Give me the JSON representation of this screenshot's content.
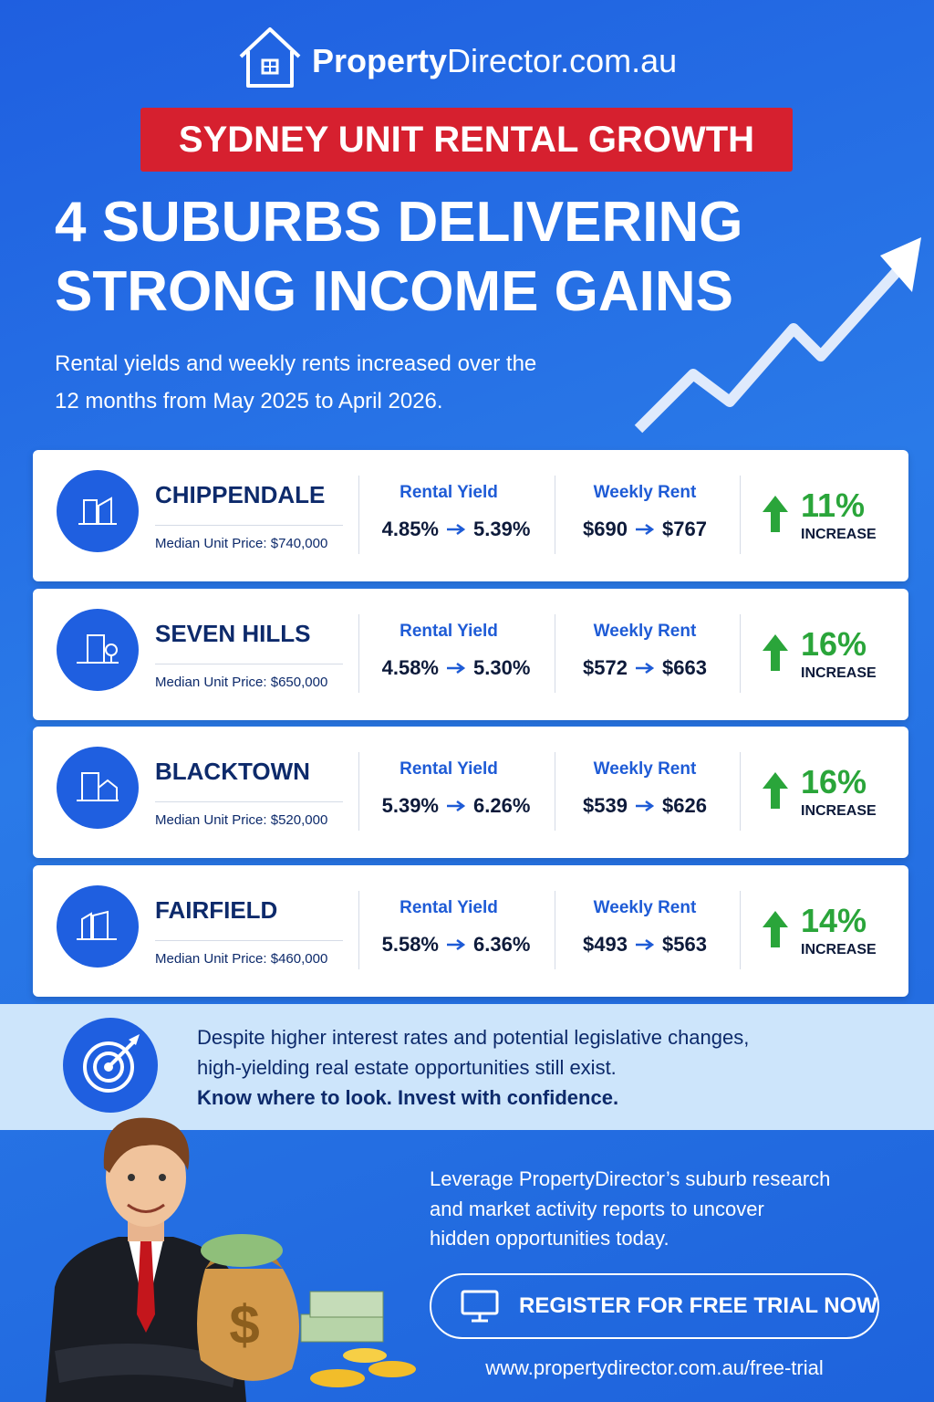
{
  "brand": {
    "name_bold": "Property",
    "name_rest": "Director.com.au"
  },
  "banner": "SYDNEY UNIT RENTAL GROWTH",
  "headline": [
    "4 SUBURBS DELIVERING",
    "STRONG INCOME GAINS"
  ],
  "subtitle": [
    "Rental yields and weekly rents increased over the",
    "12 months from May 2025 to April 2026."
  ],
  "suburbs": [
    {
      "name": "CHIPPENDALE",
      "median_label": "Median Unit Price:",
      "median": "$740,000",
      "yield_label": "Rental Yield",
      "yield_from": "4.85%",
      "yield_to": "5.39%",
      "rent_label": "Weekly Rent",
      "rent_from": "$690",
      "rent_to": "$767",
      "increase": "11%",
      "increase_label": "INCREASE"
    },
    {
      "name": "SEVEN HILLS",
      "median_label": "Median Unit Price:",
      "median": "$650,000",
      "yield_label": "Rental Yield",
      "yield_from": "4.58%",
      "yield_to": "5.30%",
      "rent_label": "Weekly Rent",
      "rent_from": "$572",
      "rent_to": "$663",
      "increase": "16%",
      "increase_label": "INCREASE"
    },
    {
      "name": "BLACKTOWN",
      "median_label": "Median Unit Price:",
      "median": "$520,000",
      "yield_label": "Rental Yield",
      "yield_from": "5.39%",
      "yield_to": "6.26%",
      "rent_label": "Weekly Rent",
      "rent_from": "$539",
      "rent_to": "$626",
      "increase": "16%",
      "increase_label": "INCREASE"
    },
    {
      "name": "FAIRFIELD",
      "median_label": "Median Unit Price:",
      "median": "$460,000",
      "yield_label": "Rental Yield",
      "yield_from": "5.58%",
      "yield_to": "6.36%",
      "rent_label": "Weekly Rent",
      "rent_from": "$493",
      "rent_to": "$563",
      "increase": "14%",
      "increase_label": "INCREASE"
    }
  ],
  "insight": {
    "lines": [
      "Despite higher interest rates and potential legislative changes,",
      "high-yielding real estate opportunities still exist."
    ],
    "emphasis": "Know where to look. Invest with confidence."
  },
  "cta": {
    "lines": [
      "Leverage PropertyDirector’s suburb research",
      "and market activity reports to uncover",
      "hidden opportunities today."
    ],
    "button": "REGISTER FOR FREE TRIAL NOW",
    "url": "www.propertydirector.com.au/free-trial"
  }
}
